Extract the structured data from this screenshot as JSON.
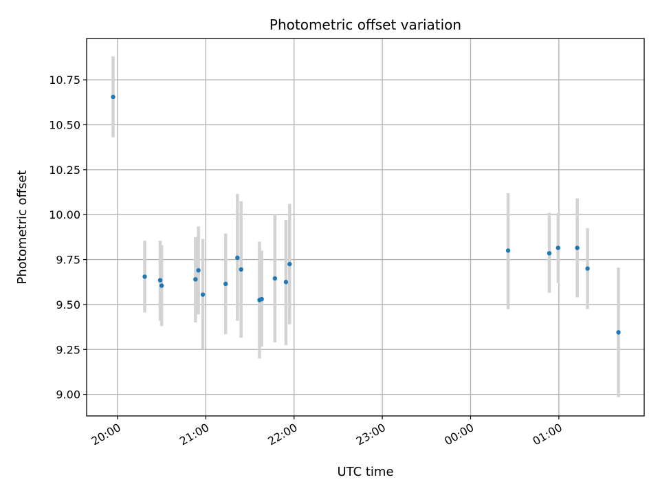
{
  "chart_data": {
    "type": "scatter",
    "title": "Photometric offset variation",
    "xlabel": "UTC time",
    "ylabel": "Photometric offset",
    "x_axis": {
      "type": "time",
      "min": "2000-01-01T19:39:00",
      "max": "2000-01-02T01:58:00",
      "ticks": [
        {
          "t": "2000-01-01T20:00:00",
          "label": "20:00"
        },
        {
          "t": "2000-01-01T21:00:00",
          "label": "21:00"
        },
        {
          "t": "2000-01-01T22:00:00",
          "label": "22:00"
        },
        {
          "t": "2000-01-01T23:00:00",
          "label": "23:00"
        },
        {
          "t": "2000-01-02T00:00:00",
          "label": "00:00"
        },
        {
          "t": "2000-01-02T01:00:00",
          "label": "01:00"
        }
      ]
    },
    "y_axis": {
      "min": 8.88,
      "max": 10.98,
      "ticks": [
        {
          "v": 9.0,
          "label": "9.00"
        },
        {
          "v": 9.25,
          "label": "9.25"
        },
        {
          "v": 9.5,
          "label": "9.50"
        },
        {
          "v": 9.75,
          "label": "9.75"
        },
        {
          "v": 10.0,
          "label": "10.00"
        },
        {
          "v": 10.25,
          "label": "10.25"
        },
        {
          "v": 10.5,
          "label": "10.50"
        },
        {
          "v": 10.75,
          "label": "10.75"
        }
      ]
    },
    "grid": true,
    "colors": {
      "point": "#1f77b4",
      "errorbar": "#d3d3d3",
      "grid": "#b0b0b0",
      "axes": "#000000"
    },
    "points": [
      {
        "t": "2000-01-01T19:57:00",
        "y": 10.655,
        "lo": 10.43,
        "hi": 10.88
      },
      {
        "t": "2000-01-01T20:18:30",
        "y": 9.655,
        "lo": 9.455,
        "hi": 9.855
      },
      {
        "t": "2000-01-01T20:29:00",
        "y": 9.635,
        "lo": 9.41,
        "hi": 9.855
      },
      {
        "t": "2000-01-01T20:30:00",
        "y": 9.605,
        "lo": 9.38,
        "hi": 9.83
      },
      {
        "t": "2000-01-01T20:53:00",
        "y": 9.64,
        "lo": 9.4,
        "hi": 9.875
      },
      {
        "t": "2000-01-01T20:55:00",
        "y": 9.69,
        "lo": 9.445,
        "hi": 9.935
      },
      {
        "t": "2000-01-01T20:58:00",
        "y": 9.555,
        "lo": 9.25,
        "hi": 9.865
      },
      {
        "t": "2000-01-01T21:13:30",
        "y": 9.615,
        "lo": 9.335,
        "hi": 9.895
      },
      {
        "t": "2000-01-01T21:21:30",
        "y": 9.76,
        "lo": 9.41,
        "hi": 10.115
      },
      {
        "t": "2000-01-01T21:24:00",
        "y": 9.695,
        "lo": 9.315,
        "hi": 10.075
      },
      {
        "t": "2000-01-01T21:36:30",
        "y": 9.525,
        "lo": 9.2,
        "hi": 9.85
      },
      {
        "t": "2000-01-01T21:38:00",
        "y": 9.53,
        "lo": 9.265,
        "hi": 9.8
      },
      {
        "t": "2000-01-01T21:47:00",
        "y": 9.645,
        "lo": 9.29,
        "hi": 10.0
      },
      {
        "t": "2000-01-01T21:54:30",
        "y": 9.625,
        "lo": 9.275,
        "hi": 9.97
      },
      {
        "t": "2000-01-01T21:57:00",
        "y": 9.725,
        "lo": 9.39,
        "hi": 10.06
      },
      {
        "t": "2000-01-02T00:25:30",
        "y": 9.8,
        "lo": 9.475,
        "hi": 10.12
      },
      {
        "t": "2000-01-02T00:53:30",
        "y": 9.785,
        "lo": 9.565,
        "hi": 10.01
      },
      {
        "t": "2000-01-02T00:59:30",
        "y": 9.815,
        "lo": 9.62,
        "hi": 10.01
      },
      {
        "t": "2000-01-02T01:12:30",
        "y": 9.815,
        "lo": 9.54,
        "hi": 10.09
      },
      {
        "t": "2000-01-02T01:19:30",
        "y": 9.7,
        "lo": 9.475,
        "hi": 9.925
      },
      {
        "t": "2000-01-02T01:40:30",
        "y": 9.345,
        "lo": 8.985,
        "hi": 9.705
      }
    ]
  }
}
